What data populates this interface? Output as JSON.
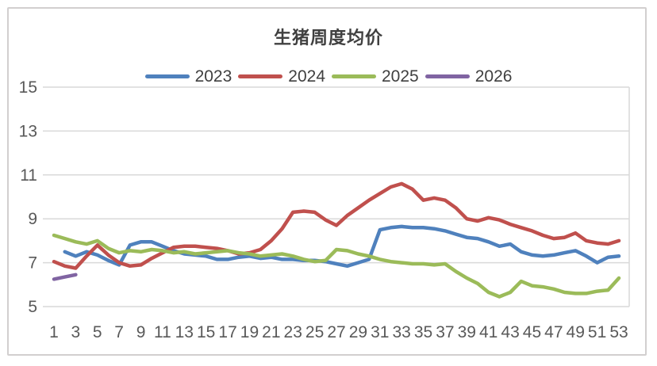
{
  "chart_data": {
    "type": "line",
    "title": "生猪周度均价",
    "xlabel": "",
    "ylabel": "",
    "x_unit": "week",
    "x_range": [
      1,
      53
    ],
    "y_range": [
      5,
      15
    ],
    "y_ticks": [
      5,
      7,
      9,
      11,
      13,
      15
    ],
    "x_ticks": [
      1,
      3,
      5,
      7,
      9,
      11,
      13,
      15,
      17,
      19,
      21,
      23,
      25,
      27,
      29,
      31,
      33,
      35,
      37,
      39,
      41,
      43,
      45,
      47,
      49,
      51,
      53
    ],
    "grid": "horizontal",
    "legend_position": "top",
    "x": [
      1,
      2,
      3,
      4,
      5,
      6,
      7,
      8,
      9,
      10,
      11,
      12,
      13,
      14,
      15,
      16,
      17,
      18,
      19,
      20,
      21,
      22,
      23,
      24,
      25,
      26,
      27,
      28,
      29,
      30,
      31,
      32,
      33,
      34,
      35,
      36,
      37,
      38,
      39,
      40,
      41,
      42,
      43,
      44,
      45,
      46,
      47,
      48,
      49,
      50,
      51,
      52,
      53
    ],
    "series": [
      {
        "name": "2023",
        "color": "#4F81BD",
        "values": [
          null,
          7.5,
          7.3,
          7.5,
          7.35,
          7.1,
          6.9,
          7.8,
          7.95,
          7.95,
          7.75,
          7.55,
          7.4,
          7.35,
          7.3,
          7.15,
          7.15,
          7.25,
          7.3,
          7.2,
          7.25,
          7.15,
          7.15,
          7.1,
          7.1,
          7.05,
          6.95,
          6.85,
          7.0,
          7.15,
          8.5,
          8.6,
          8.65,
          8.6,
          8.6,
          8.55,
          8.45,
          8.3,
          8.15,
          8.1,
          7.95,
          7.75,
          7.85,
          7.5,
          7.35,
          7.3,
          7.35,
          7.45,
          7.55,
          7.3,
          7.0,
          7.25,
          7.3
        ]
      },
      {
        "name": "2024",
        "color": "#C0504D",
        "values": [
          7.05,
          6.85,
          6.75,
          7.3,
          7.8,
          7.35,
          7.0,
          6.85,
          6.9,
          7.2,
          7.45,
          7.7,
          7.75,
          7.75,
          7.7,
          7.65,
          7.55,
          7.4,
          7.45,
          7.6,
          8.0,
          8.55,
          9.3,
          9.35,
          9.3,
          8.95,
          8.7,
          9.15,
          9.5,
          9.85,
          10.15,
          10.45,
          10.6,
          10.35,
          9.85,
          9.95,
          9.85,
          9.5,
          9.0,
          8.9,
          9.05,
          8.95,
          8.75,
          8.6,
          8.45,
          8.25,
          8.1,
          8.15,
          8.35,
          8.0,
          7.9,
          7.85,
          8.0
        ]
      },
      {
        "name": "2025",
        "color": "#9BBB59",
        "values": [
          8.25,
          8.1,
          7.95,
          7.85,
          8.0,
          7.65,
          7.45,
          7.55,
          7.5,
          7.6,
          7.55,
          7.45,
          7.5,
          7.4,
          7.45,
          7.5,
          7.55,
          7.45,
          7.4,
          7.3,
          7.35,
          7.4,
          7.3,
          7.15,
          7.05,
          7.1,
          7.6,
          7.55,
          7.4,
          7.3,
          7.15,
          7.05,
          7.0,
          6.95,
          6.95,
          6.9,
          6.95,
          6.6,
          6.3,
          6.05,
          5.65,
          5.45,
          5.65,
          6.15,
          5.95,
          5.9,
          5.8,
          5.65,
          5.6,
          5.6,
          5.7,
          5.75,
          6.3
        ]
      },
      {
        "name": "2026",
        "color": "#8064A2",
        "values": [
          6.25,
          6.35,
          6.45,
          null,
          null,
          null,
          null,
          null,
          null,
          null,
          null,
          null,
          null,
          null,
          null,
          null,
          null,
          null,
          null,
          null,
          null,
          null,
          null,
          null,
          null,
          null,
          null,
          null,
          null,
          null,
          null,
          null,
          null,
          null,
          null,
          null,
          null,
          null,
          null,
          null,
          null,
          null,
          null,
          null,
          null,
          null,
          null,
          null,
          null,
          null,
          null,
          null,
          null
        ]
      }
    ]
  },
  "colors": {
    "background": "#FFFFFF",
    "frame_border": "#D2CFCF",
    "gridline": "#D9D9D9",
    "axis_text": "#595959",
    "title_text": "#404040",
    "legend_text": "#404040"
  }
}
